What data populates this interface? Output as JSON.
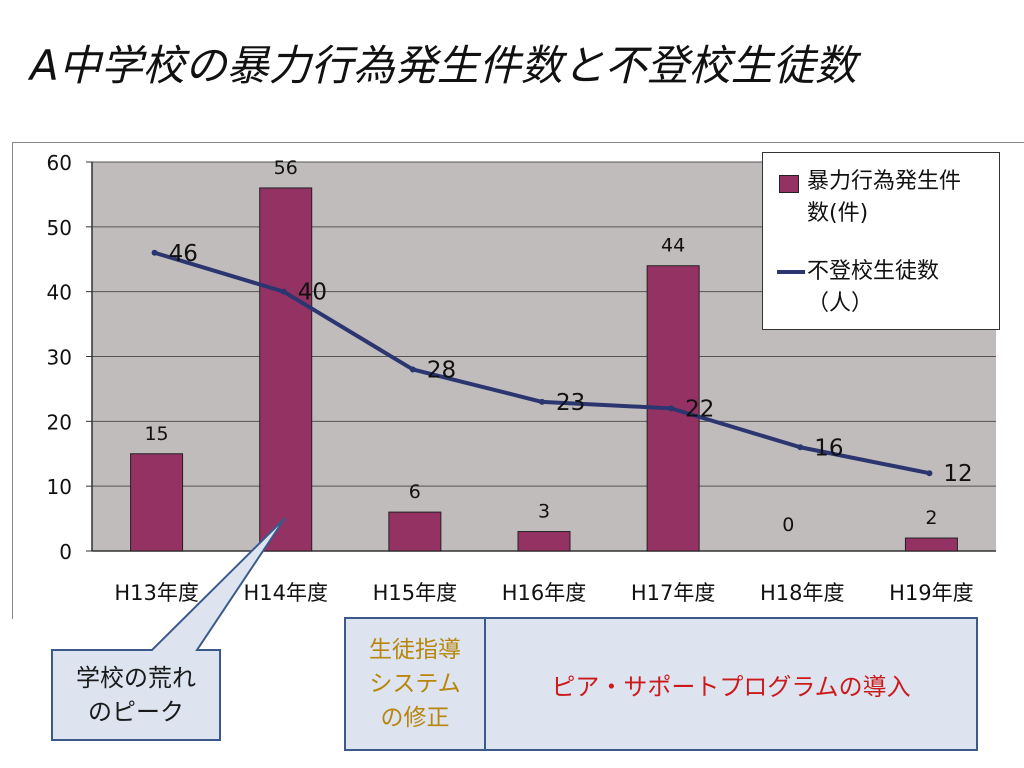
{
  "title": "A中学校の暴力行為発生件数と不登校生徒数",
  "colors": {
    "bar": "#953264",
    "line": "#2b3670",
    "plot_bg": "#c0bcbc",
    "box_bg": "#dde4f0",
    "box_border": "#3b5a8a",
    "box_left_text": "#b8860b",
    "box_right_text": "#cc1a1a"
  },
  "chart_data": {
    "type": "bar",
    "categories": [
      "H13年度",
      "H14年度",
      "H15年度",
      "H16年度",
      "H17年度",
      "H18年度",
      "H19年度"
    ],
    "series": [
      {
        "name": "暴力行為発生件数(件)",
        "kind": "bar",
        "values": [
          15,
          56,
          6,
          3,
          44,
          0,
          2
        ]
      },
      {
        "name": "不登校生徒数（人）",
        "kind": "line",
        "values": [
          46,
          40,
          28,
          23,
          22,
          16,
          12
        ]
      }
    ],
    "yticks": [
      "0",
      "10",
      "20",
      "30",
      "40",
      "50",
      "60"
    ],
    "ylim": [
      0,
      60
    ],
    "grid": true,
    "legend_position": "top-right"
  },
  "legend": {
    "bar_line1": "暴力行為発生件",
    "bar_line2": "数(件)",
    "line_line1": "不登校生徒数",
    "line_line2": "（人）"
  },
  "callout": {
    "line1": "学校の荒れ",
    "line2": "のピーク"
  },
  "box_left": {
    "line1": "生徒指導",
    "line2": "システム",
    "line3": "の修正"
  },
  "box_right": {
    "text": "ピア・サポートプログラムの導入"
  }
}
